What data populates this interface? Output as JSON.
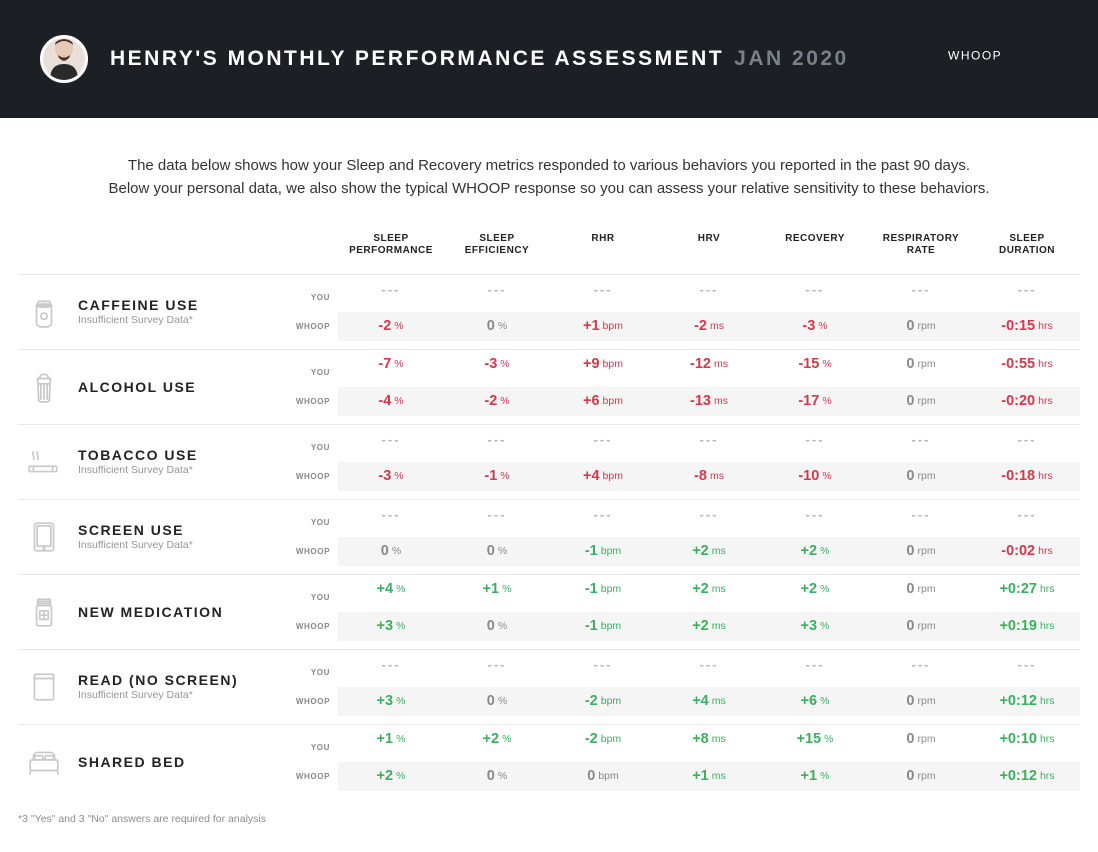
{
  "header": {
    "title": "HENRY'S MONTHLY PERFORMANCE ASSESSMENT",
    "date": "JAN 2020",
    "logo_text": "WHOOP"
  },
  "intro": {
    "line1": "The data below shows how your Sleep and Recovery metrics responded to various behaviors you reported in the past 90 days.",
    "line2": "Below your personal data, we also show the typical WHOOP response so you can assess your relative sensitivity to these behaviors."
  },
  "columns": [
    "SLEEP\nPERFORMANCE",
    "SLEEP\nEFFICIENCY",
    "RHR",
    "HRV",
    "RECOVERY",
    "RESPIRATORY\nRATE",
    "SLEEP\nDURATION"
  ],
  "row_labels": {
    "you": "YOU",
    "whoop": "WHOOP"
  },
  "colors": {
    "negative": "#d9364a",
    "positive": "#3caf5e",
    "neutral": "#8a8a8a",
    "empty": "#b8b8b8",
    "header_bg": "#1c1f23",
    "whoop_row_bg": "#f5f5f5"
  },
  "footnote": "*3 \"Yes\" and 3 \"No\" answers are required for analysis",
  "behaviors": [
    {
      "name": "CAFFEINE USE",
      "sub": "Insufficient Survey Data*",
      "icon": "coffee",
      "you": [
        null,
        null,
        null,
        null,
        null,
        null,
        null
      ],
      "whoop": [
        {
          "v": "-2",
          "u": "%",
          "c": "neg"
        },
        {
          "v": "0",
          "u": "%",
          "c": "neu"
        },
        {
          "v": "+1",
          "u": "bpm",
          "c": "neg"
        },
        {
          "v": "-2",
          "u": "ms",
          "c": "neg"
        },
        {
          "v": "-3",
          "u": "%",
          "c": "neg"
        },
        {
          "v": "0",
          "u": "rpm",
          "c": "neu"
        },
        {
          "v": "-0:15",
          "u": "hrs",
          "c": "neg"
        }
      ]
    },
    {
      "name": "ALCOHOL USE",
      "sub": "",
      "icon": "beer",
      "you": [
        {
          "v": "-7",
          "u": "%",
          "c": "neg"
        },
        {
          "v": "-3",
          "u": "%",
          "c": "neg"
        },
        {
          "v": "+9",
          "u": "bpm",
          "c": "neg"
        },
        {
          "v": "-12",
          "u": "ms",
          "c": "neg"
        },
        {
          "v": "-15",
          "u": "%",
          "c": "neg"
        },
        {
          "v": "0",
          "u": "rpm",
          "c": "neu"
        },
        {
          "v": "-0:55",
          "u": "hrs",
          "c": "neg"
        }
      ],
      "whoop": [
        {
          "v": "-4",
          "u": "%",
          "c": "neg"
        },
        {
          "v": "-2",
          "u": "%",
          "c": "neg"
        },
        {
          "v": "+6",
          "u": "bpm",
          "c": "neg"
        },
        {
          "v": "-13",
          "u": "ms",
          "c": "neg"
        },
        {
          "v": "-17",
          "u": "%",
          "c": "neg"
        },
        {
          "v": "0",
          "u": "rpm",
          "c": "neu"
        },
        {
          "v": "-0:20",
          "u": "hrs",
          "c": "neg"
        }
      ]
    },
    {
      "name": "TOBACCO USE",
      "sub": "Insufficient Survey Data*",
      "icon": "cigarette",
      "you": [
        null,
        null,
        null,
        null,
        null,
        null,
        null
      ],
      "whoop": [
        {
          "v": "-3",
          "u": "%",
          "c": "neg"
        },
        {
          "v": "-1",
          "u": "%",
          "c": "neg"
        },
        {
          "v": "+4",
          "u": "bpm",
          "c": "neg"
        },
        {
          "v": "-8",
          "u": "ms",
          "c": "neg"
        },
        {
          "v": "-10",
          "u": "%",
          "c": "neg"
        },
        {
          "v": "0",
          "u": "rpm",
          "c": "neu"
        },
        {
          "v": "-0:18",
          "u": "hrs",
          "c": "neg"
        }
      ]
    },
    {
      "name": "SCREEN USE",
      "sub": "Insufficient Survey Data*",
      "icon": "tablet",
      "you": [
        null,
        null,
        null,
        null,
        null,
        null,
        null
      ],
      "whoop": [
        {
          "v": "0",
          "u": "%",
          "c": "neu"
        },
        {
          "v": "0",
          "u": "%",
          "c": "neu"
        },
        {
          "v": "-1",
          "u": "bpm",
          "c": "pos"
        },
        {
          "v": "+2",
          "u": "ms",
          "c": "pos"
        },
        {
          "v": "+2",
          "u": "%",
          "c": "pos"
        },
        {
          "v": "0",
          "u": "rpm",
          "c": "neu"
        },
        {
          "v": "-0:02",
          "u": "hrs",
          "c": "neg"
        }
      ]
    },
    {
      "name": "NEW MEDICATION",
      "sub": "",
      "icon": "medication",
      "you": [
        {
          "v": "+4",
          "u": "%",
          "c": "pos"
        },
        {
          "v": "+1",
          "u": "%",
          "c": "pos"
        },
        {
          "v": "-1",
          "u": "bpm",
          "c": "pos"
        },
        {
          "v": "+2",
          "u": "ms",
          "c": "pos"
        },
        {
          "v": "+2",
          "u": "%",
          "c": "pos"
        },
        {
          "v": "0",
          "u": "rpm",
          "c": "neu"
        },
        {
          "v": "+0:27",
          "u": "hrs",
          "c": "pos"
        }
      ],
      "whoop": [
        {
          "v": "+3",
          "u": "%",
          "c": "pos"
        },
        {
          "v": "0",
          "u": "%",
          "c": "neu"
        },
        {
          "v": "-1",
          "u": "bpm",
          "c": "pos"
        },
        {
          "v": "+2",
          "u": "ms",
          "c": "pos"
        },
        {
          "v": "+3",
          "u": "%",
          "c": "pos"
        },
        {
          "v": "0",
          "u": "rpm",
          "c": "neu"
        },
        {
          "v": "+0:19",
          "u": "hrs",
          "c": "pos"
        }
      ]
    },
    {
      "name": "READ (NO SCREEN)",
      "sub": "Insufficient Survey Data*",
      "icon": "book",
      "you": [
        null,
        null,
        null,
        null,
        null,
        null,
        null
      ],
      "whoop": [
        {
          "v": "+3",
          "u": "%",
          "c": "pos"
        },
        {
          "v": "0",
          "u": "%",
          "c": "neu"
        },
        {
          "v": "-2",
          "u": "bpm",
          "c": "pos"
        },
        {
          "v": "+4",
          "u": "ms",
          "c": "pos"
        },
        {
          "v": "+6",
          "u": "%",
          "c": "pos"
        },
        {
          "v": "0",
          "u": "rpm",
          "c": "neu"
        },
        {
          "v": "+0:12",
          "u": "hrs",
          "c": "pos"
        }
      ]
    },
    {
      "name": "SHARED BED",
      "sub": "",
      "icon": "bed",
      "you": [
        {
          "v": "+1",
          "u": "%",
          "c": "pos"
        },
        {
          "v": "+2",
          "u": "%",
          "c": "pos"
        },
        {
          "v": "-2",
          "u": "bpm",
          "c": "pos"
        },
        {
          "v": "+8",
          "u": "ms",
          "c": "pos"
        },
        {
          "v": "+15",
          "u": "%",
          "c": "pos"
        },
        {
          "v": "0",
          "u": "rpm",
          "c": "neu"
        },
        {
          "v": "+0:10",
          "u": "hrs",
          "c": "pos"
        }
      ],
      "whoop": [
        {
          "v": "+2",
          "u": "%",
          "c": "pos"
        },
        {
          "v": "0",
          "u": "%",
          "c": "neu"
        },
        {
          "v": "0",
          "u": "bpm",
          "c": "neu"
        },
        {
          "v": "+1",
          "u": "ms",
          "c": "pos"
        },
        {
          "v": "+1",
          "u": "%",
          "c": "pos"
        },
        {
          "v": "0",
          "u": "rpm",
          "c": "neu"
        },
        {
          "v": "+0:12",
          "u": "hrs",
          "c": "pos"
        }
      ]
    }
  ]
}
